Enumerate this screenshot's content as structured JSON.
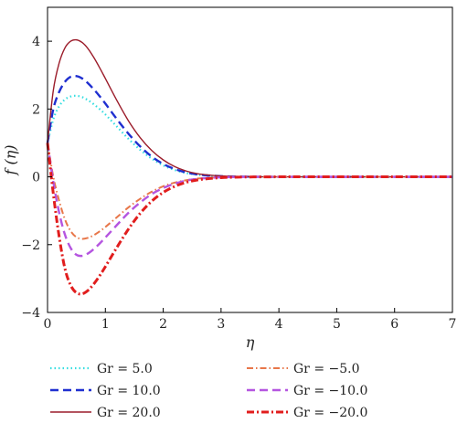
{
  "chart_data": {
    "type": "line",
    "xlabel": "η",
    "ylabel": "f (η)",
    "xlim": [
      0,
      7
    ],
    "ylim": [
      -4,
      5
    ],
    "xticks": [
      "0",
      "1",
      "2",
      "3",
      "4",
      "5",
      "6",
      "7"
    ],
    "yticks": [
      "−4",
      "−2",
      "0",
      "2",
      "4"
    ],
    "grid": false,
    "legend_position": "below",
    "x": [
      0,
      0.1,
      0.2,
      0.3,
      0.4,
      0.5,
      0.6,
      0.7,
      0.8,
      0.9,
      1.0,
      1.2,
      1.4,
      1.6,
      1.8,
      2.0,
      2.2,
      2.4,
      2.6,
      2.8,
      3.0,
      3.2,
      3.5,
      4.0,
      7.0
    ],
    "series": [
      {
        "name": "Gr = 5.0",
        "color": "#33dde0",
        "dash": "1.5,3",
        "width": 2.2,
        "values": [
          1.0,
          1.7,
          2.08,
          2.28,
          2.37,
          2.39,
          2.35,
          2.26,
          2.14,
          2.0,
          1.84,
          1.48,
          1.12,
          0.8,
          0.54,
          0.34,
          0.2,
          0.11,
          0.06,
          0.03,
          0.015,
          0.007,
          0.002,
          0.0,
          0.0
        ]
      },
      {
        "name": "Gr = 10.0",
        "color": "#1f2fd0",
        "dash": "9,5",
        "width": 2.4,
        "values": [
          1.0,
          2.0,
          2.5,
          2.8,
          2.95,
          2.97,
          2.9,
          2.76,
          2.58,
          2.38,
          2.16,
          1.7,
          1.27,
          0.9,
          0.6,
          0.38,
          0.23,
          0.13,
          0.07,
          0.04,
          0.02,
          0.009,
          0.003,
          0.0,
          0.0
        ]
      },
      {
        "name": "Gr = 20.0",
        "color": "#9b1c2a",
        "dash": "",
        "width": 1.4,
        "values": [
          1.0,
          2.55,
          3.35,
          3.8,
          4.0,
          4.04,
          3.96,
          3.78,
          3.52,
          3.22,
          2.9,
          2.25,
          1.65,
          1.16,
          0.78,
          0.5,
          0.3,
          0.17,
          0.09,
          0.05,
          0.025,
          0.012,
          0.004,
          0.0,
          0.0
        ]
      },
      {
        "name": "Gr = −5.0",
        "color": "#e8774a",
        "dash": "7,3,1.5,3",
        "width": 2.0,
        "values": [
          1.0,
          0.0,
          -0.7,
          -1.25,
          -1.6,
          -1.78,
          -1.83,
          -1.8,
          -1.72,
          -1.61,
          -1.48,
          -1.19,
          -0.9,
          -0.65,
          -0.44,
          -0.28,
          -0.17,
          -0.1,
          -0.05,
          -0.03,
          -0.015,
          -0.007,
          -0.002,
          0.0,
          0.0
        ]
      },
      {
        "name": "Gr = −10.0",
        "color": "#b555e0",
        "dash": "9,5",
        "width": 2.4,
        "values": [
          1.0,
          -0.15,
          -1.05,
          -1.7,
          -2.1,
          -2.3,
          -2.33,
          -2.26,
          -2.13,
          -1.97,
          -1.79,
          -1.42,
          -1.06,
          -0.76,
          -0.51,
          -0.33,
          -0.2,
          -0.11,
          -0.06,
          -0.03,
          -0.015,
          -0.007,
          -0.002,
          0.0,
          0.0
        ]
      },
      {
        "name": "Gr = −20.0",
        "color": "#e11d1d",
        "dash": "8,3,2,3",
        "width": 3.0,
        "values": [
          1.0,
          -0.5,
          -1.75,
          -2.7,
          -3.2,
          -3.42,
          -3.45,
          -3.35,
          -3.16,
          -2.92,
          -2.65,
          -2.08,
          -1.54,
          -1.08,
          -0.72,
          -0.46,
          -0.28,
          -0.16,
          -0.09,
          -0.05,
          -0.025,
          -0.012,
          -0.004,
          0.0,
          0.0
        ]
      }
    ]
  }
}
